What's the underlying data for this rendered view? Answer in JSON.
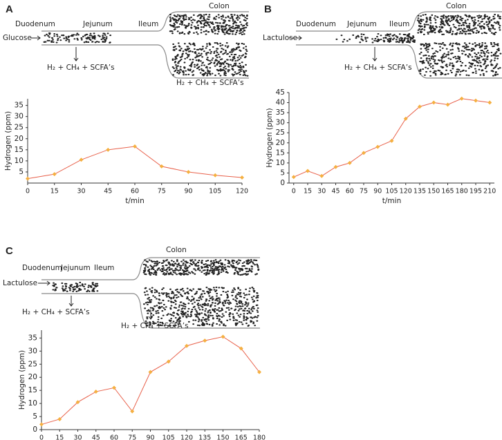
{
  "panels": [
    {
      "label": "A",
      "segments": [
        "Duodenum",
        "Jejunum",
        "Ileum"
      ],
      "colon": "Colon",
      "substrate": "Glucose",
      "products": [
        "H₂ + CH₄ + SCFA’s",
        "H₂ + CH₄ + SCFA’s"
      ]
    },
    {
      "label": "B",
      "segments": [
        "Duodenum",
        "Jejunum",
        "Ileum"
      ],
      "colon": "Colon",
      "substrate": "Lactulose",
      "products": [
        "H₂ + CH₄ + SCFA’s"
      ]
    },
    {
      "label": "C",
      "segments": [
        "Duodenum",
        "Jejunum",
        "Ileum"
      ],
      "colon": "Colon",
      "substrate": "Lactulose",
      "products": [
        "H₂ + CH₄ + SCFA’s",
        "H₂ + CH₄ + SCFA’s"
      ]
    }
  ],
  "chart_data": [
    {
      "type": "line",
      "x_label": "t/min",
      "y_label": "Hydrogen (ppm)",
      "line_color": "#e8604a",
      "marker_color": "#f5b041",
      "x": [
        0,
        15,
        30,
        45,
        60,
        75,
        90,
        105,
        120
      ],
      "values": [
        2,
        4,
        10.5,
        15,
        16.5,
        7.5,
        5,
        3.5,
        2.5
      ],
      "xlim": [
        0,
        120
      ],
      "xticks": [
        0,
        15,
        30,
        45,
        60,
        75,
        90,
        105,
        120
      ],
      "ylim": [
        0,
        38
      ],
      "yticks": [
        5,
        10,
        15,
        20,
        25,
        30,
        35
      ]
    },
    {
      "type": "line",
      "x_label": "t/min",
      "y_label": "Hydrogen (ppm)",
      "line_color": "#e8604a",
      "marker_color": "#f5b041",
      "x": [
        0,
        15,
        30,
        45,
        60,
        75,
        90,
        105,
        120,
        135,
        150,
        165,
        180,
        195,
        210
      ],
      "values": [
        3,
        6,
        3.5,
        8,
        10,
        15,
        18,
        21,
        32,
        38,
        40,
        39,
        42,
        41,
        40
      ],
      "xlim": [
        -5,
        215
      ],
      "xticks": [
        0,
        15,
        30,
        45,
        60,
        75,
        90,
        105,
        120,
        135,
        150,
        165,
        180,
        195,
        210
      ],
      "ylim": [
        0,
        45
      ],
      "yticks": [
        0,
        5,
        10,
        15,
        20,
        25,
        30,
        35,
        40,
        45
      ]
    },
    {
      "type": "line",
      "x_label": "t/min",
      "y_label": "Hydrogen (ppm)",
      "line_color": "#e8604a",
      "marker_color": "#f5b041",
      "x": [
        0,
        15,
        30,
        45,
        60,
        75,
        90,
        105,
        120,
        135,
        150,
        165,
        180
      ],
      "values": [
        2,
        4,
        10.5,
        14.5,
        16,
        7,
        22,
        26,
        32,
        34,
        35.5,
        31,
        22
      ],
      "xlim": [
        0,
        180
      ],
      "xticks": [
        0,
        15,
        30,
        45,
        60,
        75,
        90,
        105,
        120,
        135,
        150,
        165,
        180
      ],
      "ylim": [
        0,
        38
      ],
      "yticks": [
        0,
        5,
        10,
        15,
        20,
        25,
        30,
        35
      ]
    }
  ]
}
